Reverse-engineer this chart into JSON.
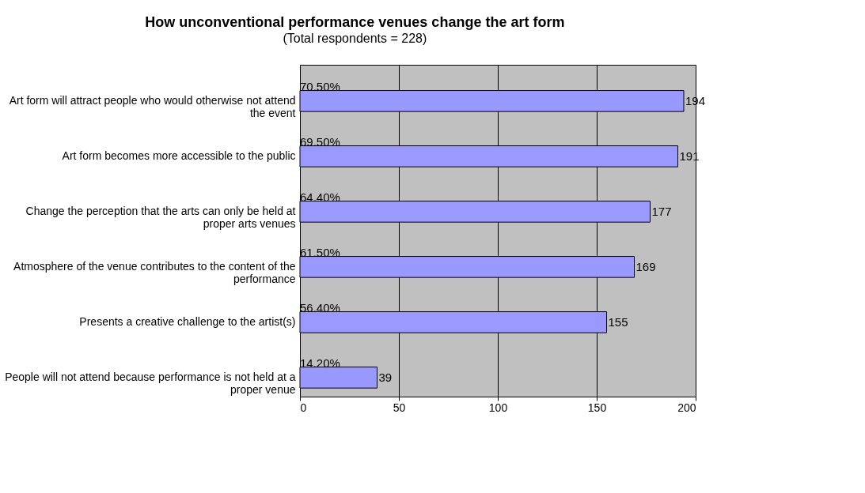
{
  "chart_data": {
    "type": "bar",
    "orientation": "horizontal",
    "title": "How unconventional performance venues change the art form",
    "subtitle": "(Total respondents = 228)",
    "categories": [
      "Art form will attract people who would otherwise not attend the event",
      "Art form becomes more accessible to the public",
      "Change the perception that the arts can only be held at proper arts venues",
      "Atmosphere of the venue contributes to the content of the performance",
      "Presents a creative challenge to the artist(s)",
      "People will not attend because performance is not held at a proper venue"
    ],
    "values": [
      194,
      191,
      177,
      169,
      155,
      39
    ],
    "color": "#9999ff",
    "value_labels": [
      "194",
      "191",
      "177",
      "169",
      "155",
      "39"
    ],
    "annotations": [
      "70.50%",
      "69.50%",
      "64.40%",
      "61.50%",
      "56.40%",
      "14.20%"
    ],
    "xlim": [
      0,
      200
    ],
    "xticks": [
      0,
      50,
      100,
      150,
      200
    ],
    "grid": "x"
  }
}
